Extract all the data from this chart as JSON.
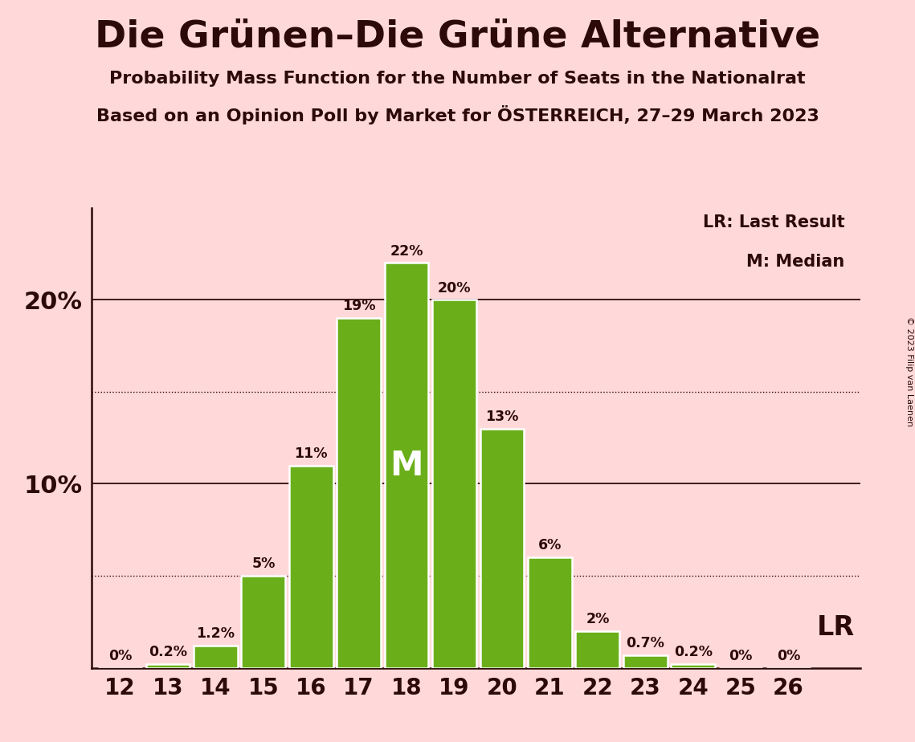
{
  "title": "Die Grünen–Die Grüne Alternative",
  "subtitle1": "Probability Mass Function for the Number of Seats in the Nationalrat",
  "subtitle2": "Based on an Opinion Poll by Market for ÖSTERREICH, 27–29 March 2023",
  "copyright": "© 2023 Filip van Laenen",
  "background_color": "#FFD9D9",
  "bar_color": "#6AAF1A",
  "bar_edge_color": "#FFFFFF",
  "text_color": "#2D0A0A",
  "seats": [
    12,
    13,
    14,
    15,
    16,
    17,
    18,
    19,
    20,
    21,
    22,
    23,
    24,
    25,
    26
  ],
  "probabilities": [
    0.0,
    0.2,
    1.2,
    5.0,
    11.0,
    19.0,
    22.0,
    20.0,
    13.0,
    6.0,
    2.0,
    0.7,
    0.2,
    0.0,
    0.0
  ],
  "prob_labels": [
    "0%",
    "0.2%",
    "1.2%",
    "5%",
    "11%",
    "19%",
    "22%",
    "20%",
    "13%",
    "6%",
    "2%",
    "0.7%",
    "0.2%",
    "0%",
    "0%"
  ],
  "median_seat": 18,
  "last_result_seat": 26,
  "solid_lines": [
    10,
    20
  ],
  "dotted_lines": [
    5,
    15
  ],
  "ylim": [
    0,
    25
  ],
  "ytick_positions": [
    10,
    20
  ],
  "ytick_labels": [
    "10%",
    "20%"
  ],
  "lr_legend": "LR: Last Result",
  "m_legend": "M: Median",
  "lr_label": "LR"
}
